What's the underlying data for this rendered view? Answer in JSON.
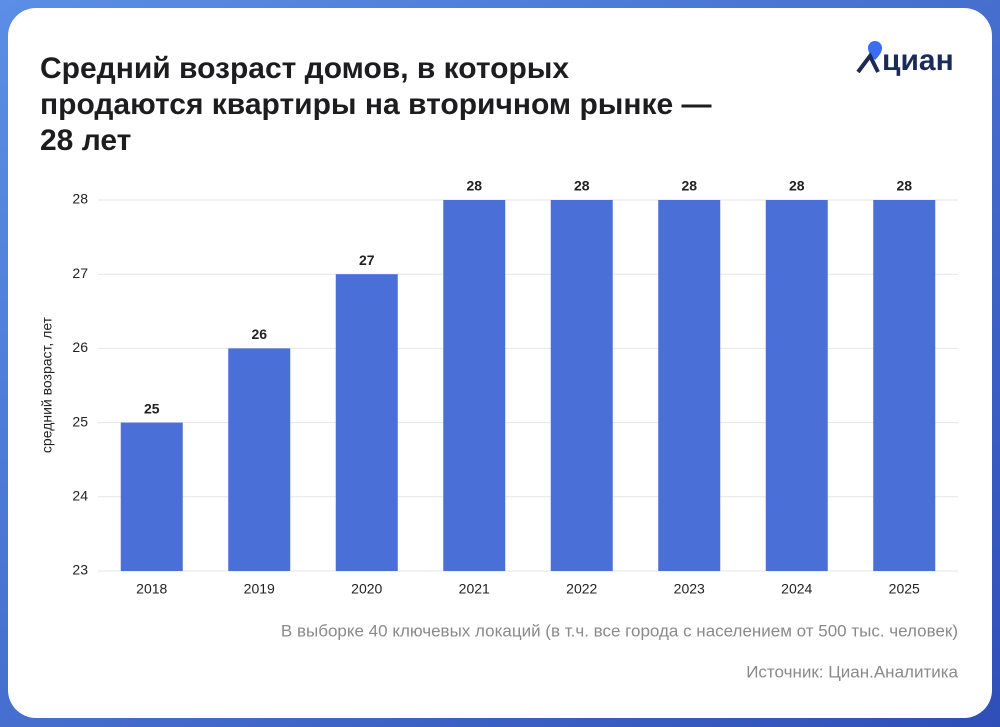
{
  "chart_data": {
    "type": "bar",
    "title": [
      "Средний возраст домов, в которых",
      "продаются квартиры на вторичном рынке —",
      "28 лет"
    ],
    "logo": "циан",
    "y_label": "средний возраст, лет",
    "categories": [
      "2018",
      "2019",
      "2020",
      "2021",
      "2022",
      "2023",
      "2024",
      "2025"
    ],
    "values": [
      25,
      26,
      27,
      28,
      28,
      28,
      28,
      28
    ],
    "color": "#4a6fd6",
    "ylim": [
      23,
      28
    ],
    "yticks": [
      23,
      24,
      25,
      26,
      27,
      28
    ],
    "grid": true,
    "note": "В выборке 40 ключевых локаций (в т.ч. все города с населением от 500 тыс. человек)",
    "source": "Источник: Циан.Аналитика"
  }
}
